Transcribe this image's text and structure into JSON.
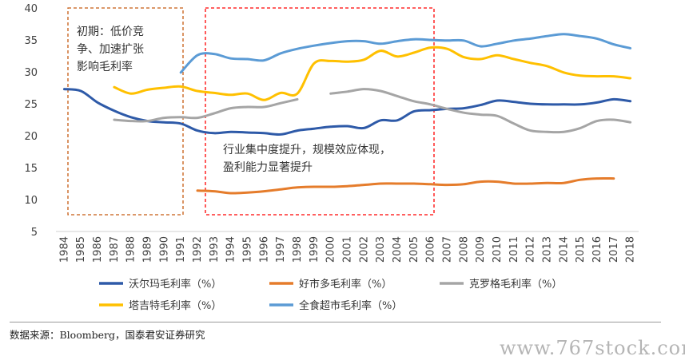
{
  "chart_data": {
    "type": "line",
    "xlabel": "",
    "ylabel": "",
    "ylim": [
      5,
      40
    ],
    "yticks": [
      5,
      10,
      15,
      20,
      25,
      30,
      35,
      40
    ],
    "grid": false,
    "legend_position": "bottom",
    "categories": [
      "1984",
      "1985",
      "1986",
      "1987",
      "1988",
      "1989",
      "1990",
      "1991",
      "1992",
      "1993",
      "1994",
      "1995",
      "1996",
      "1997",
      "1998",
      "1999",
      "2000",
      "2001",
      "2002",
      "2003",
      "2004",
      "2005",
      "2006",
      "2007",
      "2008",
      "2009",
      "2010",
      "2011",
      "2012",
      "2013",
      "2014",
      "2015",
      "2016",
      "2017",
      "2018"
    ],
    "series": [
      {
        "name": "沃尔玛毛利率（%）",
        "color": "#2e5aa8",
        "values": [
          27.3,
          27.0,
          25.2,
          23.9,
          22.9,
          22.3,
          22.1,
          21.9,
          20.8,
          20.4,
          20.6,
          20.5,
          20.4,
          20.2,
          20.8,
          21.1,
          21.4,
          21.5,
          21.2,
          22.4,
          22.4,
          23.8,
          24.0,
          24.2,
          24.3,
          24.8,
          25.5,
          25.3,
          25.0,
          24.9,
          24.9,
          24.9,
          25.2,
          25.7,
          25.4
        ]
      },
      {
        "name": "好市多毛利率（%）",
        "color": "#e57c2b",
        "values": [
          null,
          null,
          null,
          null,
          null,
          null,
          null,
          null,
          11.4,
          11.3,
          11.0,
          11.1,
          11.3,
          11.6,
          11.9,
          12.0,
          12.0,
          12.1,
          12.3,
          12.5,
          12.5,
          12.5,
          12.4,
          12.3,
          12.4,
          12.8,
          12.8,
          12.5,
          12.5,
          12.6,
          12.6,
          13.1,
          13.3,
          13.3,
          null
        ]
      },
      {
        "name": "克罗格毛利率（%）",
        "color": "#a5a5a5",
        "values": [
          null,
          null,
          null,
          22.5,
          22.3,
          22.3,
          22.8,
          22.9,
          22.8,
          23.5,
          24.3,
          24.5,
          24.5,
          25.1,
          25.7,
          null,
          26.6,
          26.9,
          27.3,
          27.0,
          26.2,
          25.4,
          24.9,
          24.2,
          23.6,
          23.3,
          23.1,
          21.9,
          20.8,
          20.6,
          20.6,
          21.2,
          22.3,
          22.5,
          22.1
        ]
      },
      {
        "name": "塔吉特毛利率（%）",
        "color": "#ffc000",
        "values": [
          null,
          null,
          null,
          27.6,
          26.6,
          27.2,
          27.5,
          27.7,
          27.0,
          26.7,
          26.4,
          26.6,
          25.6,
          26.7,
          26.6,
          31.3,
          31.7,
          31.6,
          31.9,
          33.3,
          32.4,
          33.0,
          33.8,
          33.6,
          32.3,
          32.0,
          32.6,
          32.0,
          31.4,
          30.9,
          29.9,
          29.4,
          29.3,
          29.3,
          29.0
        ]
      },
      {
        "name": "全食超市毛利率（%）",
        "color": "#5b9bd5",
        "values": [
          null,
          null,
          null,
          null,
          null,
          null,
          null,
          29.9,
          32.6,
          32.8,
          32.1,
          32.0,
          31.8,
          32.9,
          33.6,
          34.1,
          34.5,
          34.8,
          34.8,
          34.4,
          34.8,
          35.1,
          35.0,
          34.9,
          34.9,
          34.0,
          34.4,
          34.9,
          35.2,
          35.6,
          35.9,
          35.6,
          35.2,
          34.3,
          33.7
        ]
      }
    ],
    "annotations": [
      {
        "lines": [
          "初期：低价竞",
          "争、加速扩张",
          "影响毛利率"
        ],
        "box_color": "#c55a11",
        "range": [
          "1984",
          "1991"
        ]
      },
      {
        "lines": [
          "行业集中度提升，规模效应体现，",
          "盈利能力显著提升"
        ],
        "box_color": "#ff0000",
        "range": [
          "1992",
          "2006"
        ]
      }
    ]
  },
  "source_note": "数据来源：Bloomberg，国泰君安证券研究",
  "watermark": "www.767stock.com"
}
